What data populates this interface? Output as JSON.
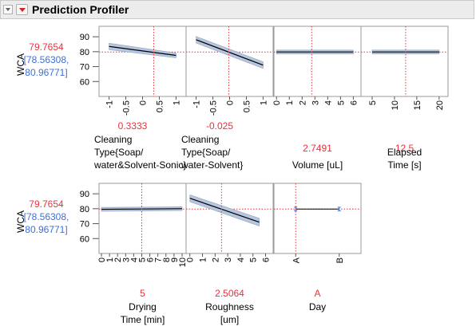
{
  "header": {
    "title": "Prediction Profiler"
  },
  "response": {
    "name": "WCA",
    "value": "79.7654",
    "ci_low": "[78.56308,",
    "ci_high": "80.96771]"
  },
  "colors": {
    "red": "#e8323c",
    "blue": "#3c6fd8",
    "band": "#b6c6de",
    "grid": "#cfcfcf"
  },
  "rows": [
    {
      "yticks": [
        "90",
        "80",
        "70",
        "60"
      ],
      "panels": [
        {
          "id": "cleaning-type-soap-water-solvent-sonic",
          "xticks": [
            "-1",
            "-0.5",
            "0",
            "0.5",
            "1"
          ],
          "current": "0.3333",
          "label": [
            "Cleaning",
            "Type{Soap/",
            "water&Solvent-Sonic}"
          ]
        },
        {
          "id": "cleaning-type-soap-water-solvent",
          "xticks": [
            "-1",
            "-0.5",
            "0",
            "0.5",
            "1"
          ],
          "current": "-0.025",
          "label": [
            "Cleaning",
            "Type{Soap/",
            "water-Solvent}"
          ]
        },
        {
          "id": "volume",
          "xticks": [
            "0",
            "1",
            "2",
            "3",
            "4",
            "5",
            "6"
          ],
          "current": "2.7491",
          "label": [
            "Volume [uL]"
          ]
        },
        {
          "id": "elapsed-time",
          "xticks": [
            "5",
            "10",
            "15",
            "20"
          ],
          "current": "12.5",
          "label": [
            "Elapsed",
            "Time [s]"
          ]
        }
      ]
    },
    {
      "yticks": [
        "90",
        "80",
        "70",
        "60"
      ],
      "panels": [
        {
          "id": "drying-time",
          "xticks": [
            "0",
            "1",
            "2",
            "3",
            "4",
            "5",
            "6",
            "7",
            "8",
            "9",
            "10"
          ],
          "current": "5",
          "label": [
            "Drying",
            "Time [min]"
          ]
        },
        {
          "id": "roughness",
          "xticks": [
            "0",
            "1",
            "2",
            "3",
            "4",
            "5",
            "6"
          ],
          "current": "2.5064",
          "label": [
            "Roughness",
            "[um]"
          ]
        },
        {
          "id": "day",
          "xticks": [
            "A",
            "B"
          ],
          "current": "A",
          "label": [
            "Day"
          ]
        }
      ]
    }
  ],
  "chart_data": {
    "type": "line",
    "y_range": [
      50,
      97
    ],
    "response_value": 79.7654,
    "profiles": [
      {
        "factor": "Cleaning Type{Soap/water&Solvent-Sonic}",
        "x_range": [
          -1.3,
          1.3
        ],
        "current": 0.3333,
        "x": [
          -1,
          1
        ],
        "y": [
          83.5,
          77.5
        ],
        "band_halfwidth": [
          2.2,
          1.6
        ]
      },
      {
        "factor": "Cleaning Type{Soap/water-Solvent}",
        "x_range": [
          -1.3,
          1.3
        ],
        "current": -0.025,
        "x": [
          -1,
          1
        ],
        "y": [
          88.0,
          71.0
        ],
        "band_halfwidth": [
          2.2,
          2.2
        ]
      },
      {
        "factor": "Volume [uL]",
        "x_range": [
          -0.2,
          6.6
        ],
        "current": 2.7491,
        "x": [
          0,
          6
        ],
        "y": [
          79.8,
          79.8
        ],
        "band_halfwidth": [
          1.3,
          1.3
        ]
      },
      {
        "factor": "Elapsed Time [s]",
        "x_range": [
          2.5,
          22
        ],
        "current": 12.5,
        "x": [
          5,
          20
        ],
        "y": [
          79.8,
          79.8
        ],
        "band_halfwidth": [
          1.3,
          1.3
        ]
      },
      {
        "factor": "Drying Time [min]",
        "x_range": [
          -0.3,
          10.5
        ],
        "current": 5,
        "x": [
          0,
          10
        ],
        "y": [
          79.6,
          80.0
        ],
        "band_halfwidth": [
          1.3,
          1.3
        ]
      },
      {
        "factor": "Roughness [um]",
        "x_range": [
          -0.3,
          6.6
        ],
        "current": 2.5064,
        "x": [
          0,
          5.5
        ],
        "y": [
          87.0,
          71.0
        ],
        "band_halfwidth": [
          2.3,
          2.6
        ]
      },
      {
        "factor": "Day",
        "x_range": [
          -0.5,
          1.5
        ],
        "current": 0,
        "categorical": true,
        "x": [
          0,
          1
        ],
        "y": [
          79.8,
          79.8
        ],
        "error": [
          1.2,
          1.2
        ]
      }
    ]
  }
}
